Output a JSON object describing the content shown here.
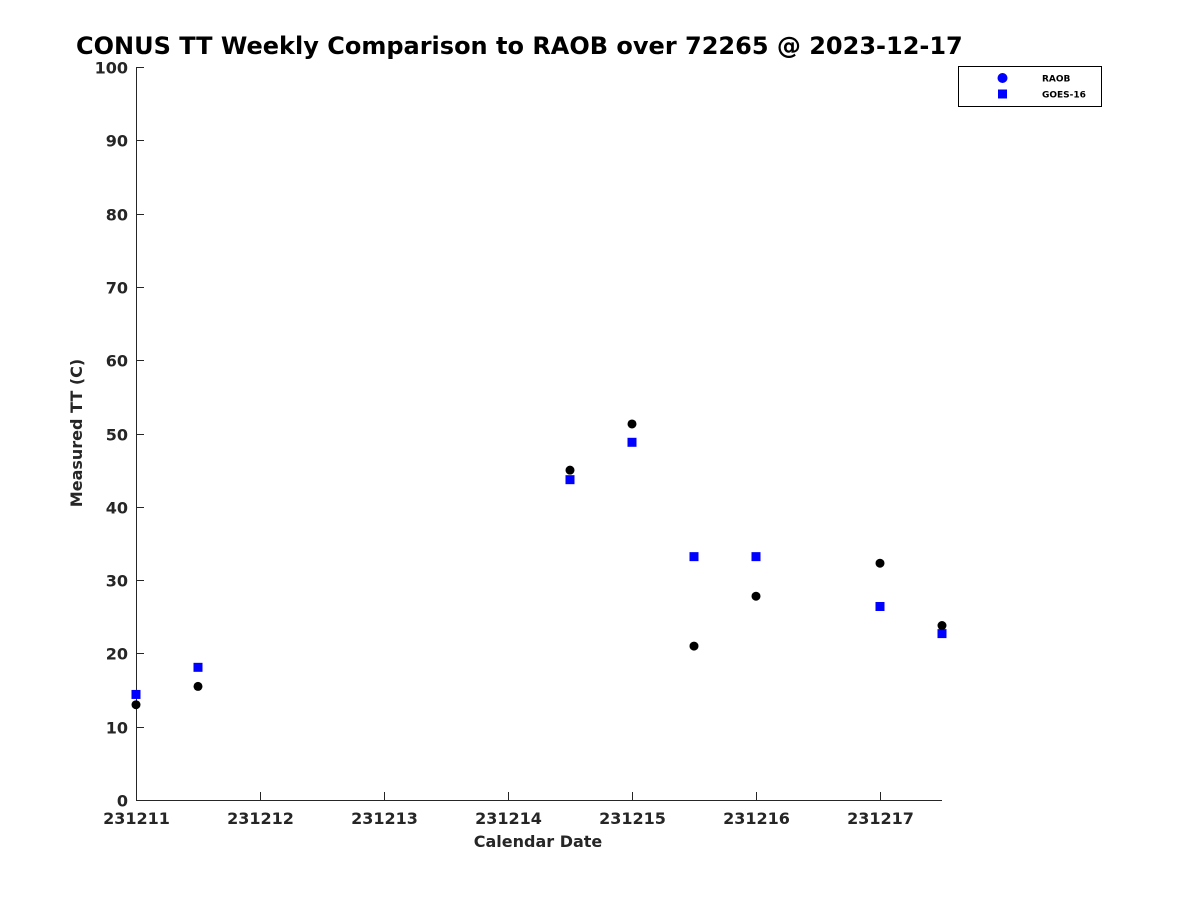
{
  "chart_data": {
    "type": "scatter",
    "title": "CONUS TT Weekly Comparison to RAOB over 72265 @ 2023-12-17",
    "xlabel": "Calendar Date",
    "ylabel": "Measured TT (C)",
    "xlim": [
      0,
      6.5
    ],
    "ylim": [
      0,
      100
    ],
    "x_ticks": [
      {
        "value": 0,
        "label": "231211"
      },
      {
        "value": 1,
        "label": "231212"
      },
      {
        "value": 2,
        "label": "231213"
      },
      {
        "value": 3,
        "label": "231214"
      },
      {
        "value": 4,
        "label": "231215"
      },
      {
        "value": 5,
        "label": "231216"
      },
      {
        "value": 6,
        "label": "231217"
      }
    ],
    "y_ticks": [
      0,
      10,
      20,
      30,
      40,
      50,
      60,
      70,
      80,
      90,
      100
    ],
    "legend_position": "top-right",
    "series": [
      {
        "name": "RAOB",
        "marker": "circle",
        "color": "#000000",
        "legend_color": "#0000ff",
        "points": [
          {
            "x": 0.0,
            "y": 13.0
          },
          {
            "x": 0.5,
            "y": 15.5
          },
          {
            "x": 3.5,
            "y": 45.0
          },
          {
            "x": 4.0,
            "y": 51.3
          },
          {
            "x": 4.5,
            "y": 21.0
          },
          {
            "x": 5.0,
            "y": 27.8
          },
          {
            "x": 6.0,
            "y": 32.3
          },
          {
            "x": 6.5,
            "y": 23.8
          }
        ]
      },
      {
        "name": "GOES-16",
        "marker": "square",
        "color": "#0000ff",
        "legend_color": "#0000ff",
        "points": [
          {
            "x": 0.0,
            "y": 14.4
          },
          {
            "x": 0.5,
            "y": 18.1
          },
          {
            "x": 3.5,
            "y": 43.7
          },
          {
            "x": 4.0,
            "y": 48.8
          },
          {
            "x": 4.5,
            "y": 33.2
          },
          {
            "x": 5.0,
            "y": 33.2
          },
          {
            "x": 6.0,
            "y": 26.4
          },
          {
            "x": 6.5,
            "y": 22.7
          }
        ]
      }
    ]
  }
}
